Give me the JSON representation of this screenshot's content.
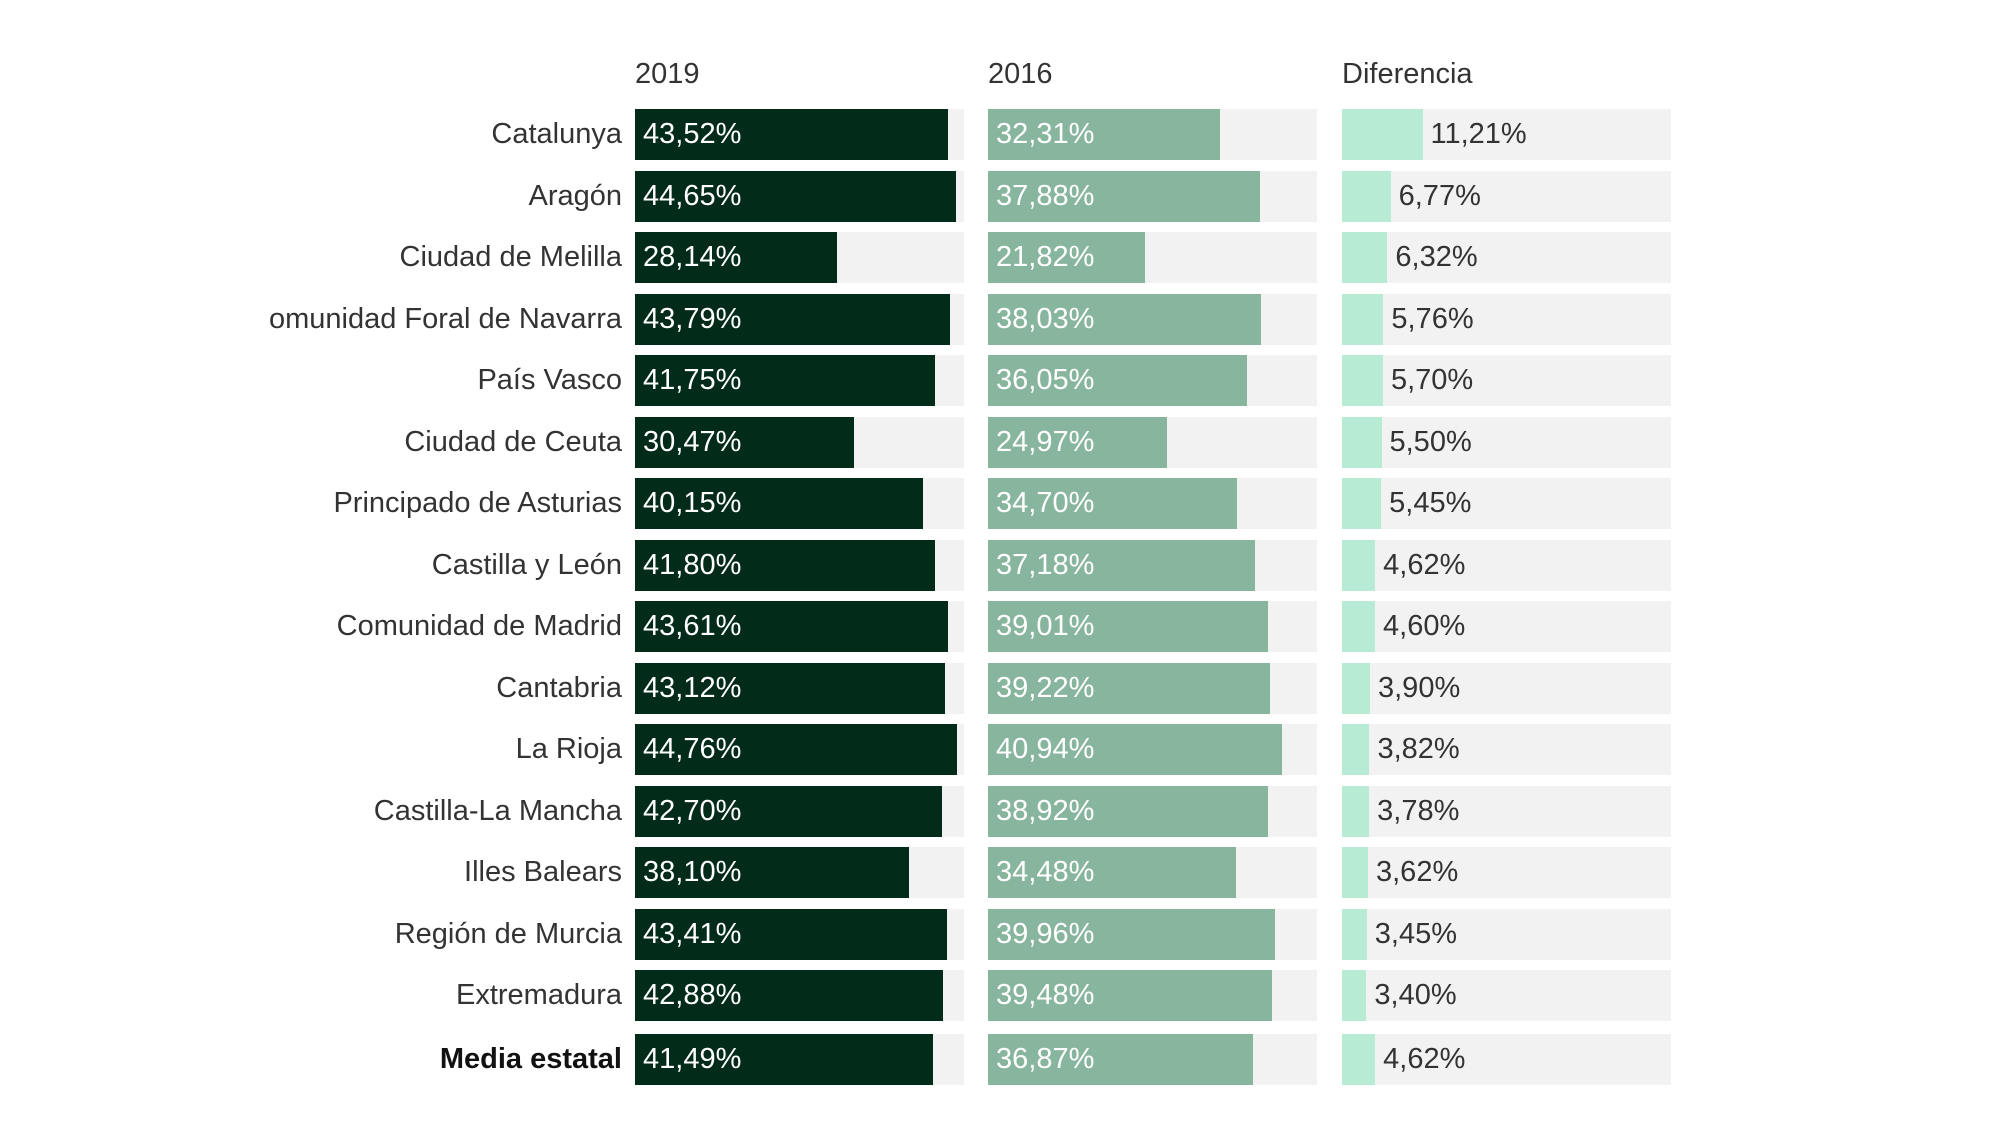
{
  "chart_data": {
    "type": "bar",
    "title": "",
    "columns": [
      "2019",
      "2016",
      "Diferencia"
    ],
    "xlim": [
      0,
      45.8
    ],
    "colors": {
      "2019": "#032b1a",
      "2016": "#88b59d",
      "Diferencia": "#b8ebd3",
      "track": "#f2f2f2"
    },
    "categories": [
      "Catalunya",
      "Aragón",
      "Ciudad de Melilla",
      "omunidad Foral de Navarra",
      "País Vasco",
      "Ciudad de Ceuta",
      "Principado de Asturias",
      "Castilla y León",
      "Comunidad de Madrid",
      "Cantabria",
      "La Rioja",
      "Castilla-La Mancha",
      "Illes Balears",
      "Región de Murcia",
      "Extremadura",
      "Media estatal"
    ],
    "series": [
      {
        "name": "2019",
        "values": [
          43.52,
          44.65,
          28.14,
          43.79,
          41.75,
          30.47,
          40.15,
          41.8,
          43.61,
          43.12,
          44.76,
          42.7,
          38.1,
          43.41,
          42.88,
          41.49
        ],
        "labels": [
          "43,52%",
          "44,65%",
          "28,14%",
          "43,79%",
          "41,75%",
          "30,47%",
          "40,15%",
          "41,80%",
          "43,61%",
          "43,12%",
          "44,76%",
          "42,70%",
          "38,10%",
          "43,41%",
          "42,88%",
          "41,49%"
        ]
      },
      {
        "name": "2016",
        "values": [
          32.31,
          37.88,
          21.82,
          38.03,
          36.05,
          24.97,
          34.7,
          37.18,
          39.01,
          39.22,
          40.94,
          38.92,
          34.48,
          39.96,
          39.48,
          36.87
        ],
        "labels": [
          "32,31%",
          "37,88%",
          "21,82%",
          "38,03%",
          "36,05%",
          "24,97%",
          "34,70%",
          "37,18%",
          "39,01%",
          "39,22%",
          "40,94%",
          "38,92%",
          "34,48%",
          "39,96%",
          "39,48%",
          "36,87%"
        ]
      },
      {
        "name": "Diferencia",
        "values": [
          11.21,
          6.77,
          6.32,
          5.76,
          5.7,
          5.5,
          5.45,
          4.62,
          4.6,
          3.9,
          3.82,
          3.78,
          3.62,
          3.45,
          3.4,
          4.62
        ],
        "labels": [
          "11,21%",
          "6,77%",
          "6,32%",
          "5,76%",
          "5,70%",
          "5,50%",
          "5,45%",
          "4,62%",
          "4,60%",
          "3,90%",
          "3,82%",
          "3,78%",
          "3,62%",
          "3,45%",
          "3,40%",
          "4,62%"
        ]
      }
    ]
  }
}
